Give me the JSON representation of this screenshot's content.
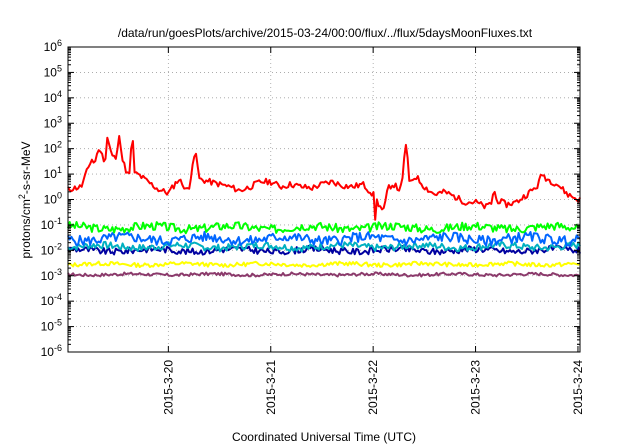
{
  "chart_data": {
    "type": "line",
    "title": "/data/run/goesPlots/archive/2015-03-24/00:00/flux/../flux/5daysMoonFluxes.txt",
    "xlabel": "Coordinated Universal Time (UTC)",
    "ylabel": {
      "prefix": "protons/cm",
      "superscript": "2",
      "suffix": "-s-sr-MeV"
    },
    "y_scale": "log",
    "ylim_exponents": [
      -6,
      6
    ],
    "y_tick_labels": [
      {
        "base": "10",
        "exp": "-6"
      },
      {
        "base": "10",
        "exp": "-5"
      },
      {
        "base": "10",
        "exp": "-4"
      },
      {
        "base": "10",
        "exp": "-3"
      },
      {
        "base": "10",
        "exp": "-2"
      },
      {
        "base": "10",
        "exp": "-1"
      },
      {
        "base": "10",
        "exp": "0"
      },
      {
        "base": "10",
        "exp": "1"
      },
      {
        "base": "10",
        "exp": "2"
      },
      {
        "base": "10",
        "exp": "3"
      },
      {
        "base": "10",
        "exp": "4"
      },
      {
        "base": "10",
        "exp": "5"
      },
      {
        "base": "10",
        "exp": "6"
      }
    ],
    "xlim_days": [
      -0.98,
      4.02
    ],
    "x_ticks": [
      {
        "day": 0,
        "label": "2015-3-20"
      },
      {
        "day": 1,
        "label": "2015-3-21"
      },
      {
        "day": 2,
        "label": "2015-3-22"
      },
      {
        "day": 3,
        "label": "2015-3-23"
      },
      {
        "day": 4,
        "label": "2015-3-24"
      }
    ],
    "grid": true,
    "legend": "none",
    "series": [
      {
        "color": "#ff0000",
        "base": 0.5,
        "noise": 0.12,
        "seed": 11,
        "x": [
          -0.98,
          -0.85,
          -0.75,
          -0.72,
          -0.69,
          -0.66,
          -0.62,
          -0.6,
          -0.55,
          -0.5,
          -0.48,
          -0.46,
          -0.4,
          -0.3,
          -0.2,
          -0.1,
          0.0,
          0.1,
          0.2,
          0.25,
          0.27,
          0.3,
          0.4,
          0.5,
          0.6,
          0.7,
          0.8,
          0.9,
          1.0,
          1.1,
          1.2,
          1.3,
          1.4,
          1.5,
          1.6,
          1.7,
          1.8,
          1.9,
          2.0,
          2.1,
          2.15,
          2.2,
          2.25,
          2.28,
          2.32,
          2.35,
          2.38,
          2.42,
          2.5,
          2.6,
          2.7,
          2.8,
          2.9,
          3.0,
          3.1,
          3.2,
          3.3,
          3.4,
          3.5,
          3.6,
          3.65,
          3.7,
          3.8,
          3.9,
          4.0
        ],
        "y": [
          0.4,
          0.5,
          1.6,
          1.4,
          1.8,
          2.0,
          1.2,
          2.5,
          1.7,
          1.6,
          2.6,
          1.7,
          1.0,
          1.0,
          0.7,
          0.4,
          0.25,
          0.8,
          0.3,
          1.9,
          0.9,
          0.8,
          0.7,
          0.6,
          0.5,
          0.35,
          0.5,
          0.7,
          0.7,
          0.5,
          0.6,
          0.5,
          0.45,
          0.6,
          0.7,
          0.55,
          0.5,
          0.6,
          0.2,
          -0.5,
          0.5,
          0.6,
          0.4,
          0.5,
          2.1,
          0.6,
          0.8,
          0.9,
          0.5,
          0.2,
          0.3,
          0.1,
          -0.1,
          -0.1,
          -0.3,
          0.0,
          -0.2,
          -0.1,
          0.2,
          0.5,
          1.0,
          0.8,
          0.6,
          0.2,
          0.0
        ],
        "spikes": [
          {
            "x": -0.7,
            "y": 1.9
          },
          {
            "x": -0.62,
            "y": 1.8
          },
          {
            "x": -0.48,
            "y": 2.5
          },
          {
            "x": -0.35,
            "y": 2.4
          },
          {
            "x": 0.27,
            "y": 1.8
          },
          {
            "x": 2.32,
            "y": 2.15
          },
          {
            "x": 2.02,
            "y": -0.8
          },
          {
            "x": 3.18,
            "y": 0.5
          }
        ]
      },
      {
        "color": "#00ff00",
        "base": -1.1,
        "noise": 0.17,
        "seed": 3
      },
      {
        "color": "#0066ff",
        "base": -1.55,
        "noise": 0.2,
        "seed": 5
      },
      {
        "color": "#00b0c0",
        "base": -1.85,
        "noise": 0.14,
        "seed": 7
      },
      {
        "color": "#0000a0",
        "base": -2.0,
        "noise": 0.13,
        "seed": 9
      },
      {
        "color": "#ffff00",
        "base": -2.55,
        "noise": 0.08,
        "seed": 13
      },
      {
        "color": "#8b3a6b",
        "base": -2.95,
        "noise": 0.06,
        "seed": 17
      }
    ]
  }
}
